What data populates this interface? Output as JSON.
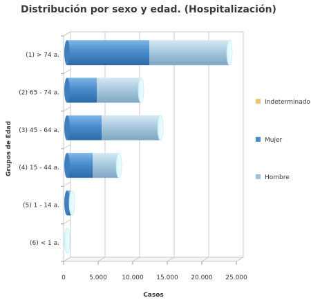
{
  "chart_data": {
    "type": "bar",
    "orientation": "horizontal",
    "stacked": true,
    "style_3d": true,
    "title": "Distribución por sexo y edad. (Hospitalización)",
    "xlabel": "Casos",
    "ylabel": "Grupos de Edad",
    "categories": [
      "(1) > 74 a.",
      "(2) 65 - 74 a.",
      "(3) 45 - 64 a.",
      "(4) 15 - 44 a.",
      "(5) 1 - 14 a.",
      "(6) < 1 a."
    ],
    "series": [
      {
        "name": "Mujer",
        "color": "#4a8ccc",
        "values": [
          11900,
          4300,
          5000,
          3700,
          500,
          0
        ]
      },
      {
        "name": "Hombre",
        "color": "#9ec4dc",
        "values": [
          11600,
          6400,
          8500,
          3800,
          200,
          20
        ]
      },
      {
        "name": "Indeterminado",
        "color": "#f2c27a",
        "values": [
          0,
          0,
          0,
          0,
          0,
          0
        ]
      }
    ],
    "legend_order": [
      "Indeterminado",
      "Mujer",
      "Hombre"
    ],
    "legend_position": "right",
    "xlim": [
      0,
      25000
    ],
    "xticks": [
      0,
      5000,
      10000,
      15000,
      20000,
      25000
    ],
    "xtick_labels": [
      "0",
      "5.000",
      "10.000",
      "15.000",
      "20.000",
      "25.000"
    ],
    "grid": true
  }
}
